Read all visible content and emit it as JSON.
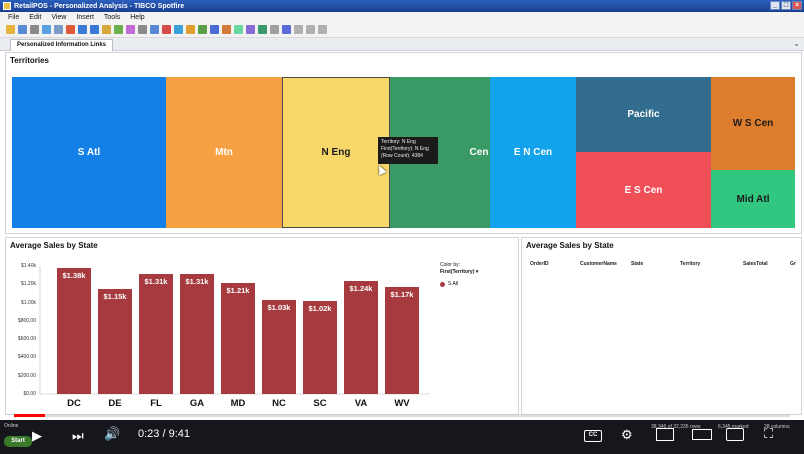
{
  "window": {
    "title": "RetailPOS - Personalized Analysis - TIBCO Spotfire",
    "btn_min": "_",
    "btn_max": "□",
    "btn_close": "×"
  },
  "menu": [
    "File",
    "Edit",
    "View",
    "Insert",
    "Tools",
    "Help"
  ],
  "tab": {
    "label": "Personalized Information Links",
    "arrow": "⌄"
  },
  "treemap": {
    "title": "Territories",
    "cells": [
      {
        "label": "S Atl",
        "color": "#1380e8"
      },
      {
        "label": "Mtn",
        "color": "#f5a042"
      },
      {
        "label": "N Eng",
        "color": "#f9d86a"
      },
      {
        "label": "Cen",
        "color": "#3a9a65"
      },
      {
        "label": "E N Cen",
        "color": "#13a3ec"
      },
      {
        "label": "Pacific",
        "color": "#326d8f"
      },
      {
        "label": "E S Cen",
        "color": "#f14f58"
      },
      {
        "label": "W S Cen",
        "color": "#dd7d2e"
      },
      {
        "label": "Mid Atl",
        "color": "#31c781"
      }
    ],
    "tooltip": {
      "line1": "Territory: N Eng",
      "line2": "First(Territory): N Eng",
      "line3": "(Row Count): 4384"
    }
  },
  "barchart_title": "Average Sales by State",
  "legend": {
    "title": "Color by:",
    "selected": "First(Territory)",
    "item": "S Atl"
  },
  "chart_data": {
    "type": "bar",
    "title": "Average Sales by State",
    "categories": [
      "DC",
      "DE",
      "FL",
      "GA",
      "MD",
      "NC",
      "SC",
      "VA",
      "WV"
    ],
    "values": [
      1380,
      1150,
      1310,
      1310,
      1210,
      1030,
      1020,
      1240,
      1170
    ],
    "value_labels": [
      "$1.38k",
      "$1.15k",
      "$1.31k",
      "$1.31k",
      "$1.21k",
      "$1.03k",
      "$1.02k",
      "$1.24k",
      "$1.17k"
    ],
    "yticks": [
      0,
      200,
      400,
      600,
      800,
      1000,
      1200,
      1400
    ],
    "ytick_labels": [
      "$0.00",
      "$200.00",
      "$400.00",
      "$600.00",
      "$800.00",
      "$1.00k",
      "$1.20k",
      "$1.40k"
    ],
    "ylim": [
      0,
      1400
    ],
    "color": "#a73a3f"
  },
  "table": {
    "title": "Average Sales by State",
    "columns": [
      "OrderID",
      "CustomerName",
      "State",
      "Territory",
      "SalesTotal",
      "Gr"
    ]
  },
  "player": {
    "time": "0:23 / 9:41",
    "progress": 0.04,
    "cc": "CC"
  },
  "status": {
    "online": "Online",
    "start": "Start",
    "rows": "38,346 of 32,235 rows",
    "marked": "6,345 marked",
    "cols": "28 columns"
  }
}
